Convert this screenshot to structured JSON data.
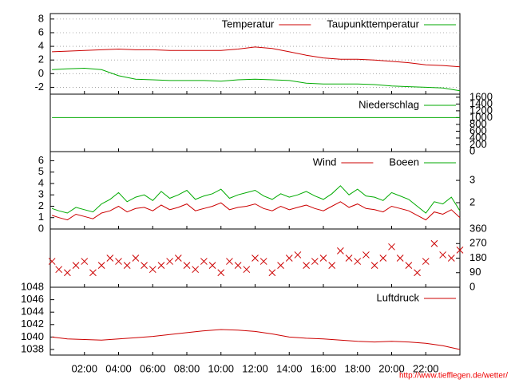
{
  "chart_data": [
    {
      "type": "line",
      "yaxis": "left",
      "grid": true,
      "legend": "upper right",
      "xlim": [
        0,
        24
      ],
      "ylim": [
        -3,
        8.8
      ],
      "yticks": [
        -2,
        0,
        2,
        4,
        6,
        8
      ],
      "x": [
        0.1,
        1,
        2,
        3,
        4,
        5,
        6,
        7,
        8,
        9,
        10,
        11,
        12,
        13,
        14,
        15,
        16,
        17,
        18,
        19,
        20,
        21,
        22,
        23,
        24
      ],
      "series": [
        {
          "name": "Temperatur",
          "color": "#cc0000",
          "values": [
            3.2,
            3.3,
            3.4,
            3.5,
            3.6,
            3.5,
            3.5,
            3.4,
            3.4,
            3.4,
            3.4,
            3.6,
            3.9,
            3.7,
            3.2,
            2.7,
            2.3,
            2.1,
            2.1,
            2.0,
            1.8,
            1.6,
            1.3,
            1.2,
            1.0
          ]
        },
        {
          "name": "Taupunkttemperatur",
          "color": "#00aa00",
          "values": [
            0.6,
            0.7,
            0.8,
            0.6,
            -0.3,
            -0.8,
            -0.9,
            -1.0,
            -1.0,
            -1.0,
            -1.1,
            -0.9,
            -0.8,
            -0.9,
            -1.0,
            -1.4,
            -1.5,
            -1.5,
            -1.5,
            -1.6,
            -1.8,
            -1.9,
            -2.0,
            -2.1,
            -2.5
          ]
        }
      ]
    },
    {
      "type": "line",
      "yaxis": "right",
      "grid": false,
      "legend": "upper right",
      "xlim": [
        0,
        24
      ],
      "ylim": [
        0,
        1690
      ],
      "yticks": [
        0,
        200,
        400,
        600,
        800,
        1000,
        1200,
        1400,
        1600
      ],
      "x": [
        0.1,
        24
      ],
      "series": [
        {
          "name": "Niederschlag",
          "color": "#00aa00",
          "values": [
            1000,
            1000
          ]
        }
      ]
    },
    {
      "type": "line",
      "yaxis": "left",
      "grid": false,
      "legend": "upper right",
      "xlim": [
        0,
        24
      ],
      "ylim": [
        0,
        6.8
      ],
      "yticks": [
        0,
        1,
        2,
        3,
        4,
        5,
        6
      ],
      "y2lim": [
        0.82,
        4.29
      ],
      "y2ticks": [
        2,
        3
      ],
      "x": [
        0.1,
        0.5,
        1,
        1.5,
        2,
        2.5,
        3,
        3.5,
        4,
        4.5,
        5,
        5.5,
        6,
        6.5,
        7,
        7.5,
        8,
        8.5,
        9,
        9.5,
        10,
        10.5,
        11,
        11.5,
        12,
        12.5,
        13,
        13.5,
        14,
        14.5,
        15,
        15.5,
        16,
        16.5,
        17,
        17.5,
        18,
        18.5,
        19,
        19.5,
        20,
        20.5,
        21,
        21.5,
        22,
        22.5,
        23,
        23.5,
        24
      ],
      "series": [
        {
          "name": "Wind",
          "color": "#cc0000",
          "values": [
            1.2,
            1.0,
            0.8,
            1.3,
            1.1,
            0.9,
            1.4,
            1.6,
            2.0,
            1.5,
            1.8,
            1.9,
            1.6,
            2.1,
            1.7,
            1.9,
            2.2,
            1.6,
            1.8,
            2.0,
            2.3,
            1.7,
            1.9,
            2.0,
            2.2,
            1.8,
            1.6,
            2.0,
            1.7,
            1.9,
            2.1,
            1.8,
            1.6,
            2.0,
            2.4,
            1.9,
            2.2,
            1.8,
            1.7,
            1.5,
            2.0,
            1.8,
            1.6,
            1.2,
            0.8,
            1.5,
            1.3,
            1.7,
            1.0
          ]
        },
        {
          "name": "Boeen",
          "color": "#00aa00",
          "values": [
            1.8,
            1.6,
            1.4,
            1.9,
            1.7,
            1.5,
            2.2,
            2.6,
            3.2,
            2.4,
            2.8,
            3.0,
            2.5,
            3.3,
            2.7,
            3.0,
            3.4,
            2.6,
            2.9,
            3.1,
            3.5,
            2.7,
            3.0,
            3.2,
            3.4,
            2.9,
            2.6,
            3.1,
            2.8,
            3.0,
            3.3,
            2.9,
            2.6,
            3.1,
            3.8,
            3.0,
            3.5,
            2.9,
            2.8,
            2.5,
            3.2,
            2.9,
            2.6,
            2.0,
            1.4,
            2.4,
            2.2,
            2.8,
            1.6
          ]
        }
      ]
    },
    {
      "type": "scatter",
      "yaxis": "right",
      "grid": false,
      "xlim": [
        0,
        24
      ],
      "ylim": [
        0,
        360
      ],
      "yticks": [
        0,
        90,
        180,
        270,
        360
      ],
      "x": [
        0.1,
        0.5,
        1,
        1.5,
        2,
        2.5,
        3,
        3.5,
        4,
        4.5,
        5,
        5.5,
        6,
        6.5,
        7,
        7.5,
        8,
        8.5,
        9,
        9.5,
        10,
        10.5,
        11,
        11.5,
        12,
        12.5,
        13,
        13.5,
        14,
        14.5,
        15,
        15.5,
        16,
        16.5,
        17,
        17.5,
        18,
        18.5,
        19,
        19.5,
        20,
        20.5,
        21,
        21.5,
        22,
        22.5,
        23,
        23.5,
        24
      ],
      "series": [
        {
          "color": "#cc0000",
          "values": [
            160,
            110,
            90,
            135,
            160,
            90,
            135,
            180,
            160,
            135,
            180,
            135,
            110,
            135,
            160,
            180,
            135,
            110,
            160,
            135,
            90,
            160,
            135,
            110,
            180,
            160,
            90,
            135,
            180,
            200,
            135,
            160,
            180,
            135,
            225,
            180,
            160,
            200,
            135,
            180,
            250,
            180,
            135,
            90,
            160,
            270,
            200,
            180,
            230
          ]
        }
      ]
    },
    {
      "type": "line",
      "yaxis": "left",
      "grid": false,
      "legend": "upper right",
      "xlim": [
        0,
        24
      ],
      "ylim": [
        1037.1,
        1048
      ],
      "yticks": [
        1038,
        1040,
        1042,
        1044,
        1046,
        1048
      ],
      "x": [
        0.1,
        1,
        2,
        3,
        4,
        5,
        6,
        7,
        8,
        9,
        10,
        11,
        12,
        13,
        14,
        15,
        16,
        17,
        18,
        19,
        20,
        21,
        22,
        23,
        24
      ],
      "xticks": [
        {
          "value": 2,
          "label": "02:00"
        },
        {
          "value": 4,
          "label": "04:00"
        },
        {
          "value": 6,
          "label": "06:00"
        },
        {
          "value": 8,
          "label": "08:00"
        },
        {
          "value": 10,
          "label": "10:00"
        },
        {
          "value": 12,
          "label": "12:00"
        },
        {
          "value": 14,
          "label": "14:00"
        },
        {
          "value": 16,
          "label": "16:00"
        },
        {
          "value": 18,
          "label": "18:00"
        },
        {
          "value": 20,
          "label": "20:00"
        },
        {
          "value": 22,
          "label": "22:00"
        }
      ],
      "series": [
        {
          "name": "Luftdruck",
          "color": "#cc0000",
          "values": [
            1040.0,
            1039.7,
            1039.6,
            1039.5,
            1039.7,
            1039.9,
            1040.1,
            1040.4,
            1040.7,
            1041.0,
            1041.2,
            1041.1,
            1040.9,
            1040.5,
            1040.0,
            1039.8,
            1039.7,
            1039.5,
            1039.3,
            1039.2,
            1039.3,
            1039.2,
            1039.0,
            1038.6,
            1038.0
          ]
        }
      ]
    }
  ],
  "footer": "http://www.tiefflegen.de/wetter/"
}
